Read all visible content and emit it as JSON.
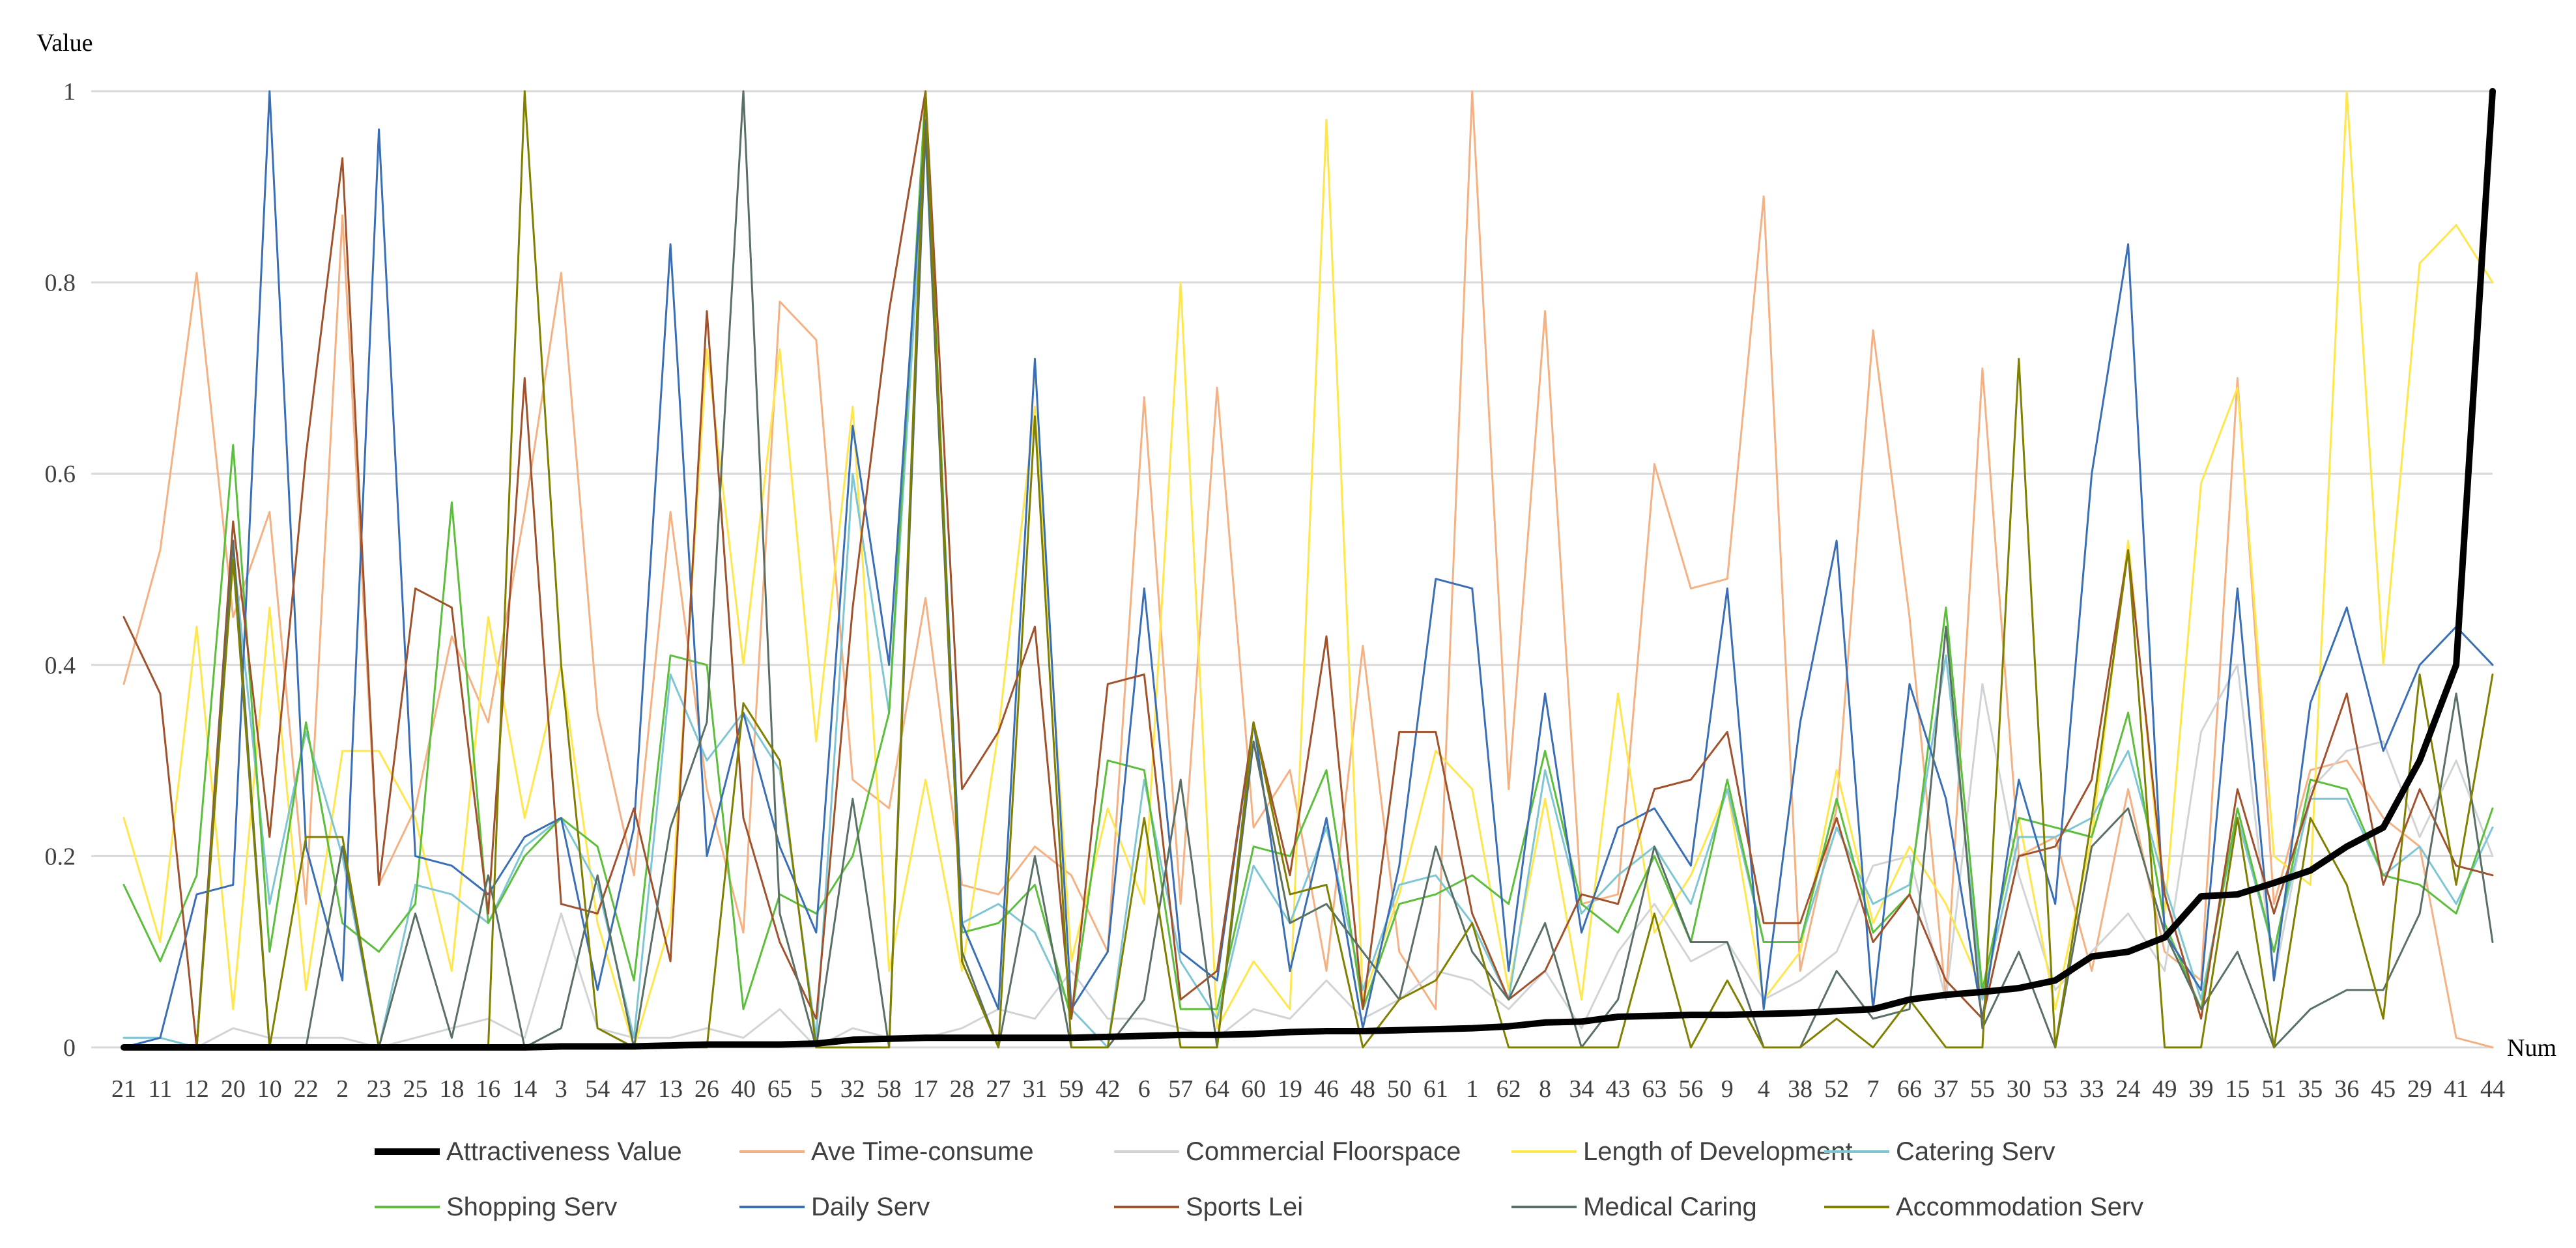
{
  "chart_data": {
    "type": "line",
    "ylabel": "Value",
    "xlabel": "Num",
    "ylim": [
      0,
      1
    ],
    "yticks": [
      0,
      0.2,
      0.4,
      0.6,
      0.8,
      1
    ],
    "ytick_labels": [
      "0",
      "0.2",
      "0.4",
      "0.6",
      "0.8",
      "1"
    ],
    "grid": "horizontal",
    "legend_position": "bottom",
    "categories": [
      "21",
      "11",
      "12",
      "20",
      "10",
      "22",
      "2",
      "23",
      "25",
      "18",
      "16",
      "14",
      "3",
      "54",
      "47",
      "13",
      "26",
      "40",
      "65",
      "5",
      "32",
      "58",
      "17",
      "28",
      "27",
      "31",
      "59",
      "42",
      "6",
      "57",
      "64",
      "60",
      "19",
      "46",
      "48",
      "50",
      "61",
      "1",
      "62",
      "8",
      "34",
      "43",
      "63",
      "56",
      "9",
      "4",
      "38",
      "52",
      "7",
      "66",
      "37",
      "55",
      "30",
      "53",
      "33",
      "24",
      "49",
      "39",
      "15",
      "51",
      "35",
      "36",
      "45",
      "29",
      "41",
      "44"
    ],
    "series": [
      {
        "name": "Attractiveness Value",
        "color": "#000000",
        "width": 10,
        "values": [
          0,
          0,
          0,
          0,
          0,
          0,
          0,
          0,
          0,
          0,
          0,
          0,
          0.001,
          0.001,
          0.001,
          0.002,
          0.003,
          0.003,
          0.003,
          0.004,
          0.008,
          0.009,
          0.01,
          0.01,
          0.01,
          0.01,
          0.01,
          0.011,
          0.012,
          0.013,
          0.013,
          0.014,
          0.016,
          0.017,
          0.017,
          0.018,
          0.019,
          0.02,
          0.022,
          0.026,
          0.027,
          0.032,
          0.033,
          0.034,
          0.034,
          0.035,
          0.036,
          0.038,
          0.04,
          0.05,
          0.055,
          0.058,
          0.062,
          0.07,
          0.095,
          0.1,
          0.115,
          0.158,
          0.16,
          0.172,
          0.185,
          0.21,
          0.23,
          0.3,
          0.4,
          1.0
        ]
      },
      {
        "name": "Ave Time-consume",
        "color": "#f4b183",
        "width": 3,
        "values": [
          0.38,
          0.52,
          0.81,
          0.45,
          0.56,
          0.15,
          0.87,
          0.17,
          0.25,
          0.43,
          0.34,
          0.56,
          0.81,
          0.35,
          0.18,
          0.56,
          0.27,
          0.12,
          0.78,
          0.74,
          0.28,
          0.25,
          0.47,
          0.17,
          0.16,
          0.21,
          0.18,
          0.1,
          0.68,
          0.15,
          0.69,
          0.23,
          0.29,
          0.08,
          0.42,
          0.1,
          0.04,
          1.0,
          0.27,
          0.77,
          0.15,
          0.16,
          0.61,
          0.48,
          0.49,
          0.89,
          0.08,
          0.25,
          0.75,
          0.45,
          0.05,
          0.71,
          0.2,
          0.22,
          0.08,
          0.27,
          0.1,
          0.07,
          0.7,
          0.15,
          0.29,
          0.3,
          0.24,
          0.21,
          0.01,
          0.0
        ]
      },
      {
        "name": "Commercial Floorspace",
        "color": "#d0d4d6",
        "width": 3,
        "values": [
          0.01,
          0.01,
          0.0,
          0.02,
          0.01,
          0.01,
          0.01,
          0.0,
          0.01,
          0.02,
          0.03,
          0.01,
          0.14,
          0.02,
          0.01,
          0.01,
          0.02,
          0.01,
          0.04,
          0.0,
          0.02,
          0.01,
          0.01,
          0.02,
          0.04,
          0.03,
          0.08,
          0.03,
          0.03,
          0.02,
          0.01,
          0.04,
          0.03,
          0.07,
          0.03,
          0.05,
          0.08,
          0.07,
          0.04,
          0.08,
          0.02,
          0.1,
          0.15,
          0.09,
          0.11,
          0.05,
          0.07,
          0.1,
          0.19,
          0.2,
          0.05,
          0.38,
          0.18,
          0.06,
          0.1,
          0.14,
          0.08,
          0.33,
          0.4,
          0.07,
          0.27,
          0.31,
          0.32,
          0.22,
          0.3,
          0.2
        ]
      },
      {
        "name": "Length of Development",
        "color": "#ffe64d",
        "width": 3,
        "values": [
          0.24,
          0.11,
          0.44,
          0.04,
          0.46,
          0.06,
          0.31,
          0.31,
          0.24,
          0.08,
          0.45,
          0.24,
          0.4,
          0.13,
          0.0,
          0.13,
          0.73,
          0.4,
          0.73,
          0.32,
          0.67,
          0.08,
          0.28,
          0.08,
          0.33,
          0.67,
          0.09,
          0.25,
          0.15,
          0.8,
          0.02,
          0.09,
          0.04,
          0.97,
          0.05,
          0.16,
          0.31,
          0.27,
          0.06,
          0.26,
          0.05,
          0.37,
          0.12,
          0.18,
          0.27,
          0.05,
          0.1,
          0.29,
          0.13,
          0.21,
          0.15,
          0.06,
          0.24,
          0.04,
          0.22,
          0.53,
          0.14,
          0.59,
          0.69,
          0.2,
          0.17,
          1.0,
          0.4,
          0.82,
          0.86,
          0.8
        ]
      },
      {
        "name": "Catering Serv",
        "color": "#7fc6d4",
        "width": 3,
        "values": [
          0.01,
          0.01,
          0.0,
          0.52,
          0.15,
          0.33,
          0.2,
          0.0,
          0.17,
          0.16,
          0.13,
          0.21,
          0.24,
          0.17,
          0.01,
          0.39,
          0.3,
          0.35,
          0.29,
          0.01,
          0.6,
          0.35,
          0.95,
          0.13,
          0.15,
          0.12,
          0.04,
          0.0,
          0.28,
          0.09,
          0.03,
          0.19,
          0.13,
          0.23,
          0.06,
          0.17,
          0.18,
          0.13,
          0.05,
          0.29,
          0.14,
          0.18,
          0.21,
          0.15,
          0.27,
          0.11,
          0.11,
          0.23,
          0.15,
          0.17,
          0.41,
          0.05,
          0.22,
          0.22,
          0.24,
          0.31,
          0.17,
          0.05,
          0.24,
          0.1,
          0.26,
          0.26,
          0.18,
          0.21,
          0.15,
          0.23
        ]
      },
      {
        "name": "Shopping Serv",
        "color": "#5cbe3c",
        "width": 3,
        "values": [
          0.17,
          0.09,
          0.18,
          0.63,
          0.1,
          0.34,
          0.13,
          0.1,
          0.15,
          0.57,
          0.13,
          0.2,
          0.24,
          0.21,
          0.07,
          0.41,
          0.4,
          0.04,
          0.16,
          0.14,
          0.2,
          0.35,
          1.0,
          0.12,
          0.13,
          0.17,
          0.03,
          0.3,
          0.29,
          0.04,
          0.04,
          0.21,
          0.2,
          0.29,
          0.04,
          0.15,
          0.16,
          0.18,
          0.15,
          0.31,
          0.15,
          0.12,
          0.2,
          0.11,
          0.28,
          0.11,
          0.11,
          0.26,
          0.12,
          0.16,
          0.46,
          0.06,
          0.24,
          0.23,
          0.22,
          0.35,
          0.13,
          0.04,
          0.25,
          0.1,
          0.28,
          0.27,
          0.18,
          0.17,
          0.14,
          0.25
        ]
      },
      {
        "name": "Daily Serv",
        "color": "#3a6eb5",
        "width": 3,
        "values": [
          0.0,
          0.01,
          0.16,
          0.17,
          1.0,
          0.21,
          0.07,
          0.96,
          0.2,
          0.19,
          0.16,
          0.22,
          0.24,
          0.06,
          0.23,
          0.84,
          0.2,
          0.35,
          0.21,
          0.12,
          0.65,
          0.4,
          0.97,
          0.13,
          0.04,
          0.72,
          0.04,
          0.1,
          0.48,
          0.1,
          0.07,
          0.34,
          0.08,
          0.24,
          0.02,
          0.19,
          0.49,
          0.48,
          0.08,
          0.37,
          0.12,
          0.23,
          0.25,
          0.19,
          0.48,
          0.04,
          0.34,
          0.53,
          0.04,
          0.38,
          0.26,
          0.03,
          0.28,
          0.15,
          0.6,
          0.84,
          0.12,
          0.06,
          0.48,
          0.07,
          0.36,
          0.46,
          0.31,
          0.4,
          0.44,
          0.4
        ]
      },
      {
        "name": "Sports Lei",
        "color": "#a0522d",
        "width": 3,
        "values": [
          0.45,
          0.37,
          0.0,
          0.55,
          0.22,
          0.62,
          0.93,
          0.17,
          0.48,
          0.46,
          0.14,
          0.7,
          0.15,
          0.14,
          0.25,
          0.09,
          0.77,
          0.24,
          0.11,
          0.03,
          0.46,
          0.77,
          1.0,
          0.27,
          0.33,
          0.44,
          0.03,
          0.38,
          0.39,
          0.05,
          0.08,
          0.34,
          0.18,
          0.43,
          0.04,
          0.33,
          0.33,
          0.14,
          0.05,
          0.08,
          0.16,
          0.15,
          0.27,
          0.28,
          0.33,
          0.13,
          0.13,
          0.24,
          0.11,
          0.16,
          0.07,
          0.03,
          0.2,
          0.21,
          0.28,
          0.52,
          0.16,
          0.03,
          0.27,
          0.14,
          0.26,
          0.37,
          0.17,
          0.27,
          0.19,
          0.18
        ]
      },
      {
        "name": "Medical Caring",
        "color": "#5b7065",
        "width": 3,
        "values": [
          0.0,
          0.0,
          0.0,
          0.53,
          0.0,
          0.0,
          0.21,
          0.0,
          0.14,
          0.01,
          0.18,
          0.0,
          0.02,
          0.18,
          0.0,
          0.23,
          0.34,
          1.0,
          0.14,
          0.0,
          0.26,
          0.0,
          0.96,
          0.1,
          0.0,
          0.2,
          0.0,
          0.0,
          0.05,
          0.28,
          0.0,
          0.32,
          0.13,
          0.15,
          0.1,
          0.05,
          0.21,
          0.1,
          0.05,
          0.13,
          0.0,
          0.05,
          0.21,
          0.11,
          0.11,
          0.0,
          0.0,
          0.08,
          0.03,
          0.04,
          0.44,
          0.02,
          0.1,
          0.0,
          0.21,
          0.25,
          0.12,
          0.04,
          0.1,
          0.0,
          0.04,
          0.06,
          0.06,
          0.14,
          0.37,
          0.11
        ]
      },
      {
        "name": "Accommodation Serv",
        "color": "#7f7f00",
        "width": 3,
        "values": [
          0.0,
          0.0,
          0.0,
          0.51,
          0.0,
          0.22,
          0.22,
          0.0,
          0.0,
          0.0,
          0.0,
          1.0,
          0.4,
          0.02,
          0.0,
          0.0,
          0.0,
          0.36,
          0.3,
          0.0,
          0.0,
          0.0,
          1.0,
          0.09,
          0.0,
          0.66,
          0.0,
          0.0,
          0.24,
          0.0,
          0.0,
          0.34,
          0.16,
          0.17,
          0.0,
          0.05,
          0.07,
          0.13,
          0.0,
          0.0,
          0.0,
          0.0,
          0.14,
          0.0,
          0.07,
          0.0,
          0.0,
          0.03,
          0.0,
          0.05,
          0.0,
          0.0,
          0.72,
          0.0,
          0.24,
          0.52,
          0.0,
          0.0,
          0.24,
          0.0,
          0.24,
          0.17,
          0.03,
          0.39,
          0.17,
          0.39
        ]
      }
    ]
  }
}
